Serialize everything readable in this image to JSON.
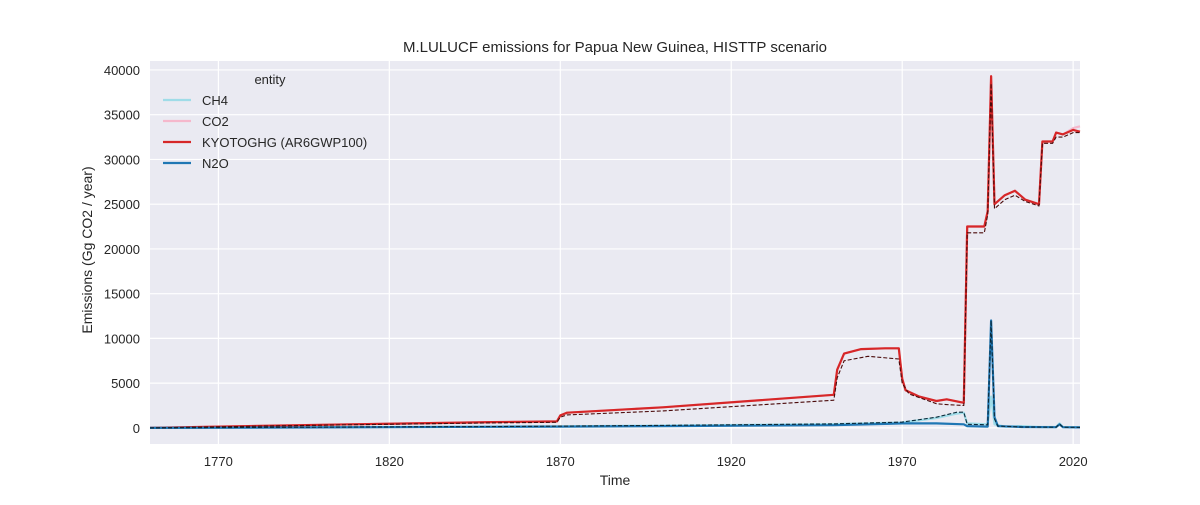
{
  "chart_data": {
    "type": "line",
    "title": "M.LULUCF emissions for Papua New Guinea, HISTTP scenario",
    "xlabel": "Time",
    "ylabel": "Emissions (Gg CO2 / year)",
    "xlim": [
      1750,
      2022
    ],
    "ylim": [
      -1800,
      41000
    ],
    "xticks": [
      1770,
      1820,
      1870,
      1920,
      1970,
      2020
    ],
    "yticks": [
      0,
      5000,
      10000,
      15000,
      20000,
      25000,
      30000,
      35000,
      40000
    ],
    "grid": true,
    "legend": {
      "title": "entity",
      "placement": "top-left"
    },
    "series": [
      {
        "name": "CH4",
        "color": "#9fdce8",
        "values": [
          [
            1750,
            0
          ],
          [
            1800,
            80
          ],
          [
            1850,
            140
          ],
          [
            1870,
            180
          ],
          [
            1900,
            260
          ],
          [
            1950,
            420
          ],
          [
            1970,
            600
          ],
          [
            1980,
            1100
          ],
          [
            1986,
            1600
          ],
          [
            1988,
            1700
          ],
          [
            1989,
            500
          ],
          [
            1995,
            400
          ],
          [
            1996,
            3500
          ],
          [
            1997,
            400
          ],
          [
            2000,
            150
          ],
          [
            2005,
            200
          ],
          [
            2010,
            100
          ],
          [
            2015,
            100
          ],
          [
            2016,
            500
          ],
          [
            2017,
            100
          ],
          [
            2020,
            80
          ],
          [
            2022,
            50
          ]
        ]
      },
      {
        "name": "CO2",
        "color": "#f5b8cc",
        "values": [
          [
            1750,
            0
          ],
          [
            1800,
            350
          ],
          [
            1850,
            650
          ],
          [
            1869,
            720
          ],
          [
            1870,
            1400
          ],
          [
            1872,
            1700
          ],
          [
            1900,
            2300
          ],
          [
            1950,
            3700
          ],
          [
            1951,
            6500
          ],
          [
            1953,
            8300
          ],
          [
            1958,
            8800
          ],
          [
            1965,
            8900
          ],
          [
            1969,
            8900
          ],
          [
            1970,
            5500
          ],
          [
            1971,
            4200
          ],
          [
            1975,
            3500
          ],
          [
            1980,
            3000
          ],
          [
            1983,
            3200
          ],
          [
            1988,
            2800
          ],
          [
            1989,
            22500
          ],
          [
            1994,
            22500
          ],
          [
            1995,
            24200
          ],
          [
            1996,
            39300
          ],
          [
            1997,
            25000
          ],
          [
            2000,
            26000
          ],
          [
            2003,
            26500
          ],
          [
            2006,
            25500
          ],
          [
            2010,
            25000
          ],
          [
            2011,
            32000
          ],
          [
            2014,
            32000
          ],
          [
            2015,
            33000
          ],
          [
            2017,
            32800
          ],
          [
            2020,
            33500
          ],
          [
            2022,
            33700
          ]
        ]
      },
      {
        "name": "KYOTOGHG (AR6GWP100)",
        "color": "#d62728",
        "values": [
          [
            1750,
            0
          ],
          [
            1800,
            350
          ],
          [
            1850,
            650
          ],
          [
            1869,
            720
          ],
          [
            1870,
            1400
          ],
          [
            1872,
            1700
          ],
          [
            1900,
            2300
          ],
          [
            1950,
            3700
          ],
          [
            1951,
            6500
          ],
          [
            1953,
            8300
          ],
          [
            1958,
            8800
          ],
          [
            1965,
            8900
          ],
          [
            1969,
            8900
          ],
          [
            1970,
            5500
          ],
          [
            1971,
            4200
          ],
          [
            1975,
            3500
          ],
          [
            1980,
            3000
          ],
          [
            1983,
            3200
          ],
          [
            1988,
            2800
          ],
          [
            1989,
            22500
          ],
          [
            1994,
            22500
          ],
          [
            1995,
            24200
          ],
          [
            1996,
            39300
          ],
          [
            1997,
            25000
          ],
          [
            2000,
            26000
          ],
          [
            2003,
            26500
          ],
          [
            2006,
            25500
          ],
          [
            2010,
            25000
          ],
          [
            2011,
            32000
          ],
          [
            2014,
            32000
          ],
          [
            2015,
            33000
          ],
          [
            2017,
            32800
          ],
          [
            2020,
            33300
          ],
          [
            2022,
            33100
          ]
        ]
      },
      {
        "name": "N2O",
        "color": "#1f77b4",
        "values": [
          [
            1750,
            0
          ],
          [
            1800,
            60
          ],
          [
            1850,
            120
          ],
          [
            1870,
            150
          ],
          [
            1900,
            200
          ],
          [
            1950,
            300
          ],
          [
            1970,
            500
          ],
          [
            1980,
            500
          ],
          [
            1988,
            400
          ],
          [
            1989,
            200
          ],
          [
            1995,
            150
          ],
          [
            1996,
            12000
          ],
          [
            1997,
            1200
          ],
          [
            1998,
            200
          ],
          [
            2005,
            100
          ],
          [
            2015,
            80
          ],
          [
            2016,
            400
          ],
          [
            2017,
            80
          ],
          [
            2022,
            50
          ]
        ]
      },
      {
        "name": "",
        "color": "#4a0a0a",
        "dashed": true,
        "values": [
          [
            1750,
            0
          ],
          [
            1800,
            300
          ],
          [
            1850,
            560
          ],
          [
            1869,
            630
          ],
          [
            1870,
            1200
          ],
          [
            1872,
            1450
          ],
          [
            1900,
            1900
          ],
          [
            1950,
            3100
          ],
          [
            1951,
            5600
          ],
          [
            1953,
            7500
          ],
          [
            1960,
            8000
          ],
          [
            1969,
            7700
          ],
          [
            1970,
            5000
          ],
          [
            1972,
            3800
          ],
          [
            1980,
            2700
          ],
          [
            1983,
            2600
          ],
          [
            1988,
            2500
          ],
          [
            1989,
            21800
          ],
          [
            1994,
            21800
          ],
          [
            1995,
            23800
          ],
          [
            1996,
            38500
          ],
          [
            1997,
            24500
          ],
          [
            2000,
            25500
          ],
          [
            2003,
            26000
          ],
          [
            2006,
            25300
          ],
          [
            2010,
            24800
          ],
          [
            2011,
            31800
          ],
          [
            2014,
            31800
          ],
          [
            2015,
            32500
          ],
          [
            2017,
            32500
          ],
          [
            2020,
            33000
          ],
          [
            2022,
            33000
          ]
        ]
      },
      {
        "name": "",
        "color": "#0a2a3a",
        "dashed": true,
        "values": [
          [
            1750,
            0
          ],
          [
            1800,
            90
          ],
          [
            1850,
            150
          ],
          [
            1870,
            200
          ],
          [
            1900,
            280
          ],
          [
            1950,
            450
          ],
          [
            1970,
            650
          ],
          [
            1980,
            1200
          ],
          [
            1986,
            1750
          ],
          [
            1988,
            1750
          ],
          [
            1989,
            400
          ],
          [
            1995,
            350
          ],
          [
            1996,
            12000
          ],
          [
            1997,
            1000
          ],
          [
            1998,
            200
          ],
          [
            2005,
            100
          ],
          [
            2015,
            80
          ],
          [
            2016,
            450
          ],
          [
            2017,
            80
          ],
          [
            2022,
            50
          ]
        ]
      }
    ]
  }
}
